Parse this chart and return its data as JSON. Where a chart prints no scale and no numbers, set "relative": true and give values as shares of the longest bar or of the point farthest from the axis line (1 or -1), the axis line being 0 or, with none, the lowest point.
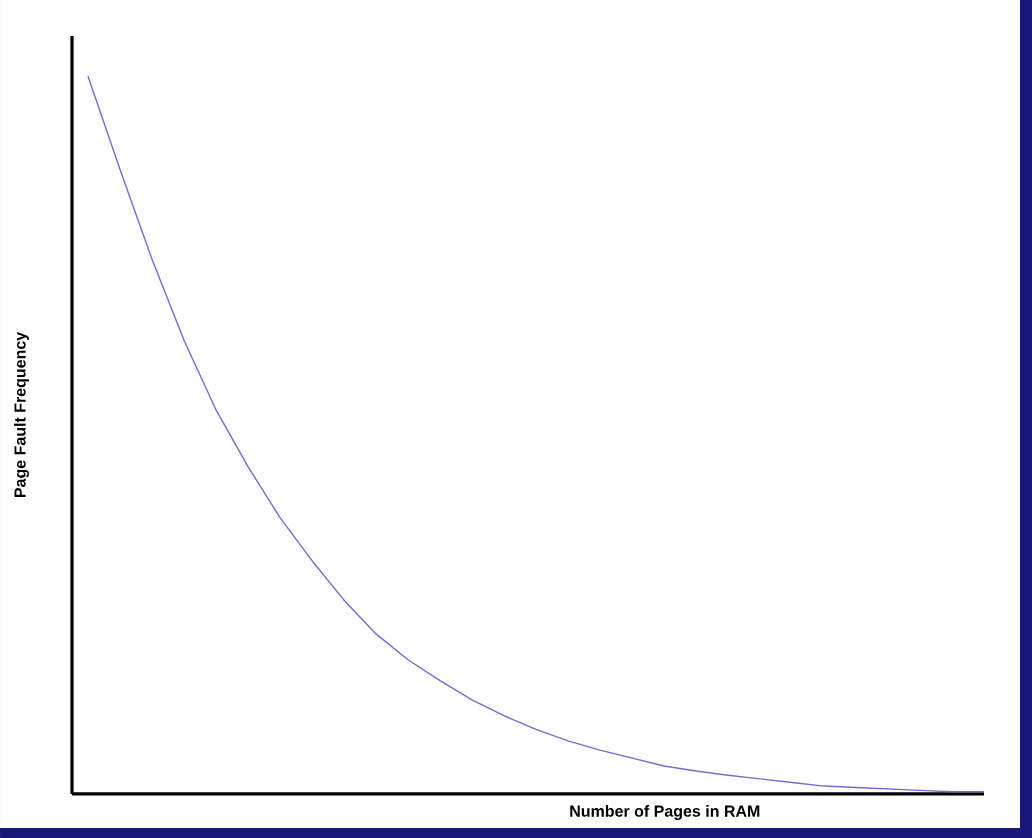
{
  "chart_data": {
    "type": "line",
    "relative": true,
    "xlabel": "Number of Pages in RAM",
    "ylabel": "Page Fault Frequency",
    "categories": [
      null,
      null,
      null,
      null,
      null,
      null,
      null,
      null,
      null,
      null,
      null,
      null,
      null,
      null,
      null,
      null,
      null,
      null,
      null,
      null,
      null,
      null,
      null,
      null,
      null,
      null,
      null,
      null,
      null
    ],
    "marker": "none",
    "line_style": "solid",
    "series": [
      {
        "color": "#6f6fd0",
        "values": [
          1.0,
          0.87,
          0.745,
          0.632,
          0.535,
          0.456,
          0.385,
          0.325,
          0.27,
          0.223,
          0.187,
          0.158,
          0.131,
          0.109,
          0.09,
          0.074,
          0.061,
          0.05,
          0.039,
          0.032,
          0.026,
          0.021,
          0.016,
          0.011,
          0.009,
          0.007,
          0.005,
          0.003,
          0.003
        ]
      }
    ]
  }
}
